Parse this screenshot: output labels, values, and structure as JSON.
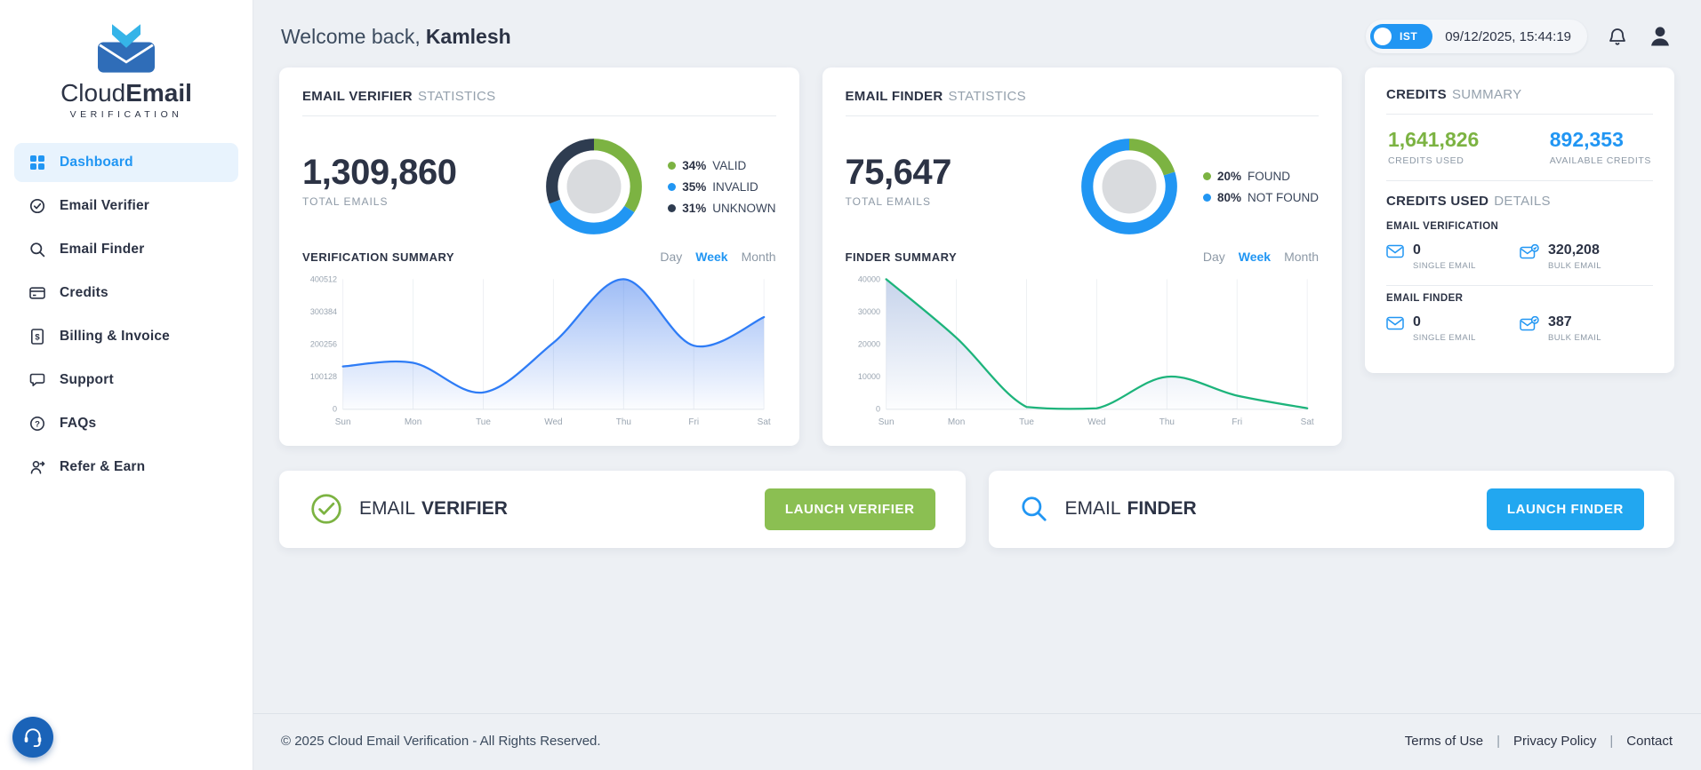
{
  "brand": {
    "name_regular": "Cloud",
    "name_bold": "Email",
    "subtitle": "VERIFICATION"
  },
  "sidebar": {
    "items": [
      {
        "label": "Dashboard",
        "active": true
      },
      {
        "label": "Email Verifier"
      },
      {
        "label": "Email Finder"
      },
      {
        "label": "Credits"
      },
      {
        "label": "Billing & Invoice"
      },
      {
        "label": "Support"
      },
      {
        "label": "FAQs"
      },
      {
        "label": "Refer & Earn"
      }
    ]
  },
  "header": {
    "welcome_prefix": "Welcome back,",
    "username": "Kamlesh",
    "timezone": "IST",
    "datetime": "09/12/2025, 15:44:19"
  },
  "verifier_card": {
    "title_strong": "EMAIL VERIFIER",
    "title_light": "STATISTICS",
    "total": "1,309,860",
    "total_label": "TOTAL EMAILS",
    "donut": {
      "segments": [
        {
          "pct": 34,
          "pct_label": "34%",
          "label": "VALID",
          "color": "#7cb342"
        },
        {
          "pct": 35,
          "pct_label": "35%",
          "label": "INVALID",
          "color": "#2196f3"
        },
        {
          "pct": 31,
          "pct_label": "31%",
          "label": "UNKNOWN",
          "color": "#2e3c50"
        }
      ]
    },
    "summary_title": "VERIFICATION SUMMARY",
    "ranges": [
      {
        "label": "Day"
      },
      {
        "label": "Week",
        "active": true
      },
      {
        "label": "Month"
      }
    ],
    "chart": {
      "type": "area",
      "x_labels": [
        "Sun",
        "Mon",
        "Tue",
        "Wed",
        "Thu",
        "Fri",
        "Sat"
      ],
      "values": [
        132000,
        143000,
        52000,
        205000,
        400512,
        196000,
        284000
      ],
      "ylim": [
        0,
        400512
      ],
      "yticks": [
        "400512",
        "300384",
        "200256",
        "100128",
        "0"
      ],
      "line_color": "#2e7cf6",
      "fill_color": "#4f86ee",
      "fill_opacity": 0.55
    }
  },
  "finder_card": {
    "title_strong": "EMAIL FINDER",
    "title_light": "STATISTICS",
    "total": "75,647",
    "total_label": "TOTAL EMAILS",
    "donut": {
      "segments": [
        {
          "pct": 20,
          "pct_label": "20%",
          "label": "FOUND",
          "color": "#7cb342"
        },
        {
          "pct": 80,
          "pct_label": "80%",
          "label": "NOT FOUND",
          "color": "#2196f3"
        }
      ]
    },
    "summary_title": "FINDER SUMMARY",
    "ranges": [
      {
        "label": "Day"
      },
      {
        "label": "Week",
        "active": true
      },
      {
        "label": "Month"
      }
    ],
    "chart": {
      "type": "area",
      "x_labels": [
        "Sun",
        "Mon",
        "Tue",
        "Wed",
        "Thu",
        "Fri",
        "Sat"
      ],
      "values": [
        40000,
        22000,
        700,
        300,
        10000,
        4200,
        300
      ],
      "ylim": [
        0,
        40000
      ],
      "yticks": [
        "40000",
        "30000",
        "20000",
        "10000",
        "0"
      ],
      "line_color": "#1db47b",
      "fill_color": "#8fa9d8",
      "fill_opacity": 0.5
    }
  },
  "credits_card": {
    "title_strong": "CREDITS",
    "title_light": "SUMMARY",
    "used_value": "1,641,826",
    "used_label": "CREDITS USED",
    "used_color": "#7cb342",
    "available_value": "892,353",
    "available_label": "AVAILABLE CREDITS",
    "available_color": "#2196f3",
    "details_strong": "CREDITS USED",
    "details_light": "DETAILS",
    "sections": [
      {
        "heading": "EMAIL VERIFICATION",
        "single_value": "0",
        "single_label": "SINGLE EMAIL",
        "bulk_value": "320,208",
        "bulk_label": "BULK EMAIL"
      },
      {
        "heading": "EMAIL FINDER",
        "single_value": "0",
        "single_label": "SINGLE EMAIL",
        "bulk_value": "387",
        "bulk_label": "BULK EMAIL"
      }
    ]
  },
  "launch": {
    "verifier": {
      "title_light": "EMAIL",
      "title_strong": "VERIFIER",
      "button": "LAUNCH VERIFIER",
      "button_color": "#8bbf52"
    },
    "finder": {
      "title_light": "EMAIL",
      "title_strong": "FINDER",
      "button": "LAUNCH FINDER",
      "button_color": "#22a7f0"
    }
  },
  "footer": {
    "copyright": "© 2025 Cloud Email Verification - All Rights Reserved.",
    "links": [
      "Terms of Use",
      "Privacy Policy",
      "Contact"
    ],
    "separator": "|"
  }
}
